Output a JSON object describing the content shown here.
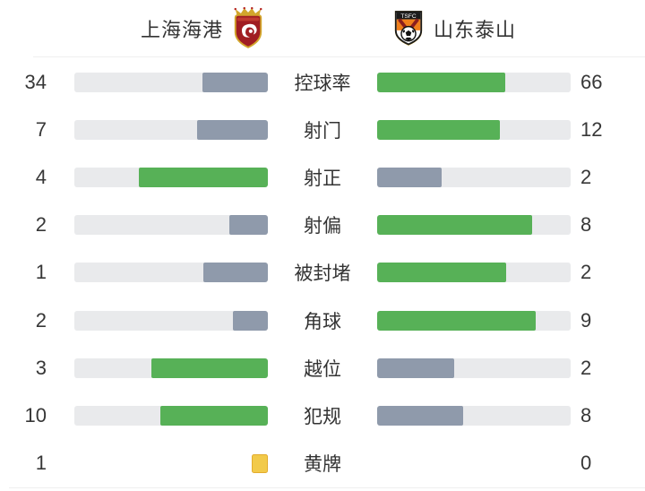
{
  "header": {
    "home": {
      "name": "上海海港",
      "logo": "shanghai-port-crest"
    },
    "away": {
      "name": "山东泰山",
      "logo": "shandong-taishan-crest"
    }
  },
  "colors": {
    "win_bar": "#57b157",
    "lose_bar": "#8f9aab",
    "track": "#e9eaec",
    "yellow_card": "#f2ca4a",
    "yellow_card_border": "#e3ac2d",
    "text": "#373737",
    "divider": "#efefef"
  },
  "chart_data": {
    "type": "bar",
    "orientation": "bilateral-horizontal",
    "title": "",
    "legend_position": "top",
    "grid": false,
    "categories": [
      "控球率",
      "射门",
      "射正",
      "射偏",
      "被封堵",
      "角球",
      "越位",
      "犯规",
      "黄牌"
    ],
    "series": [
      {
        "name": "上海海港",
        "values": [
          34,
          7,
          4,
          2,
          1,
          2,
          3,
          10,
          1
        ]
      },
      {
        "name": "山东泰山",
        "values": [
          66,
          12,
          2,
          8,
          2,
          9,
          2,
          8,
          0
        ]
      }
    ],
    "notes": "Each bar fill is proportional to the stat's share of the two teams' combined value; the higher side is green, the lower side gray-blue; 黄牌 row shows a yellow-card icon for 1 and no bar for 0."
  },
  "rows": [
    {
      "label": "控球率",
      "home": {
        "value": "34",
        "pct": 34,
        "style": "lose"
      },
      "away": {
        "value": "66",
        "pct": 66,
        "style": "win"
      }
    },
    {
      "label": "射门",
      "home": {
        "value": "7",
        "pct": 36.8,
        "style": "lose"
      },
      "away": {
        "value": "12",
        "pct": 63.2,
        "style": "win"
      }
    },
    {
      "label": "射正",
      "home": {
        "value": "4",
        "pct": 66.7,
        "style": "win"
      },
      "away": {
        "value": "2",
        "pct": 33.3,
        "style": "lose"
      }
    },
    {
      "label": "射偏",
      "home": {
        "value": "2",
        "pct": 20,
        "style": "lose"
      },
      "away": {
        "value": "8",
        "pct": 80,
        "style": "win"
      }
    },
    {
      "label": "被封堵",
      "home": {
        "value": "1",
        "pct": 33.3,
        "style": "lose"
      },
      "away": {
        "value": "2",
        "pct": 66.7,
        "style": "win"
      }
    },
    {
      "label": "角球",
      "home": {
        "value": "2",
        "pct": 18.2,
        "style": "lose"
      },
      "away": {
        "value": "9",
        "pct": 81.8,
        "style": "win"
      }
    },
    {
      "label": "越位",
      "home": {
        "value": "3",
        "pct": 60,
        "style": "win"
      },
      "away": {
        "value": "2",
        "pct": 40,
        "style": "lose"
      }
    },
    {
      "label": "犯规",
      "home": {
        "value": "10",
        "pct": 55.6,
        "style": "win"
      },
      "away": {
        "value": "8",
        "pct": 44.4,
        "style": "lose"
      }
    },
    {
      "label": "黄牌",
      "home": {
        "value": "1",
        "style": "yellow-card"
      },
      "away": {
        "value": "0",
        "style": "none"
      }
    }
  ]
}
